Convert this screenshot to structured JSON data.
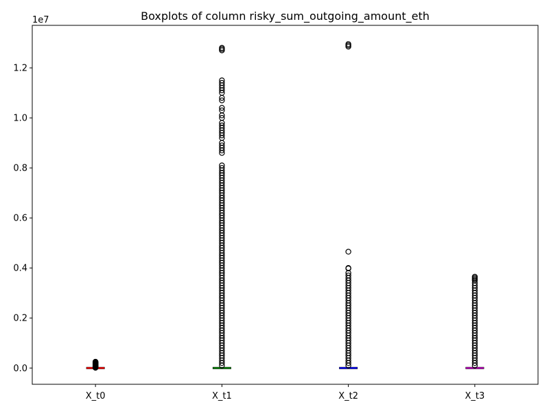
{
  "chart_data": {
    "type": "box",
    "title": "Boxplots of column risky_sum_outgoing_amount_eth",
    "xlabel": "",
    "ylabel": "",
    "y_scale_label": "1e7",
    "ylim": [
      -0.065,
      1.37
    ],
    "y_ticks": [
      0.0,
      0.2,
      0.4,
      0.6,
      0.8,
      1.0,
      1.2
    ],
    "y_tick_labels": [
      "0.0",
      "0.2",
      "0.4",
      "0.6",
      "0.8",
      "1.0",
      "1.2"
    ],
    "grid": false,
    "categories": [
      "X_t0",
      "X_t1",
      "X_t2",
      "X_t3"
    ],
    "series": [
      {
        "category": "X_t0",
        "median_color": "#ff0000",
        "box": {
          "min": 0.0,
          "q1": 0.0,
          "median": 0.0,
          "q3": 0.0,
          "max": 0.0
        },
        "outlier_max": 0.025,
        "outliers": [
          0.025,
          0.024,
          0.023,
          0.022,
          0.021,
          0.02,
          0.019,
          0.018,
          0.017,
          0.016,
          0.015,
          0.014,
          0.013,
          0.012,
          0.011,
          0.01,
          0.009,
          0.008,
          0.007,
          0.006,
          0.005,
          0.004,
          0.003,
          0.002,
          0.001
        ]
      },
      {
        "category": "X_t1",
        "median_color": "#008000",
        "box": {
          "min": 0.0,
          "q1": 0.0,
          "median": 0.0,
          "q3": 0.0,
          "max": 0.0
        },
        "outlier_max": 1.28,
        "outliers": [
          1.28,
          1.275,
          1.27,
          1.15,
          1.14,
          1.13,
          1.12,
          1.11,
          1.1,
          1.08,
          1.07,
          1.04,
          1.03,
          1.01,
          1.0,
          0.98,
          0.97,
          0.96,
          0.95,
          0.94,
          0.93,
          0.92,
          0.9,
          0.89,
          0.88,
          0.87,
          0.86,
          0.81,
          0.8,
          0.79,
          0.78,
          0.77,
          0.76,
          0.75,
          0.74,
          0.73,
          0.72,
          0.71,
          0.7,
          0.69,
          0.68,
          0.67,
          0.66,
          0.65,
          0.64,
          0.63,
          0.62,
          0.61,
          0.6,
          0.59,
          0.58,
          0.57,
          0.56,
          0.55,
          0.54,
          0.53,
          0.52,
          0.51,
          0.5,
          0.49,
          0.48,
          0.47,
          0.46,
          0.45,
          0.44,
          0.43,
          0.42,
          0.41,
          0.4,
          0.39,
          0.38,
          0.37,
          0.36,
          0.35,
          0.34,
          0.33,
          0.32,
          0.31,
          0.3,
          0.29,
          0.28,
          0.27,
          0.26,
          0.25,
          0.24,
          0.23,
          0.22,
          0.21,
          0.2,
          0.19,
          0.18,
          0.17,
          0.16,
          0.15,
          0.14,
          0.13,
          0.12,
          0.11,
          0.1,
          0.09,
          0.08,
          0.07,
          0.06,
          0.05,
          0.04,
          0.03,
          0.02,
          0.01
        ]
      },
      {
        "category": "X_t2",
        "median_color": "#0000ff",
        "box": {
          "min": 0.0,
          "q1": 0.0,
          "median": 0.0,
          "q3": 0.0,
          "max": 0.0
        },
        "outlier_max": 1.295,
        "outliers": [
          1.295,
          1.29,
          1.285,
          0.465,
          0.4,
          0.398,
          0.38,
          0.37,
          0.36,
          0.35,
          0.34,
          0.33,
          0.32,
          0.31,
          0.3,
          0.29,
          0.28,
          0.27,
          0.26,
          0.25,
          0.24,
          0.23,
          0.22,
          0.21,
          0.2,
          0.19,
          0.18,
          0.17,
          0.16,
          0.15,
          0.14,
          0.13,
          0.12,
          0.11,
          0.1,
          0.09,
          0.08,
          0.07,
          0.06,
          0.05,
          0.04,
          0.03,
          0.02,
          0.01
        ]
      },
      {
        "category": "X_t3",
        "median_color": "#c000c0",
        "box": {
          "min": 0.0,
          "q1": 0.0,
          "median": 0.0,
          "q3": 0.0,
          "max": 0.0
        },
        "outlier_max": 0.365,
        "outliers": [
          0.365,
          0.36,
          0.355,
          0.35,
          0.34,
          0.33,
          0.32,
          0.31,
          0.3,
          0.29,
          0.28,
          0.27,
          0.26,
          0.25,
          0.24,
          0.23,
          0.22,
          0.21,
          0.2,
          0.19,
          0.18,
          0.17,
          0.16,
          0.15,
          0.14,
          0.13,
          0.12,
          0.11,
          0.1,
          0.09,
          0.08,
          0.07,
          0.06,
          0.05,
          0.04,
          0.03,
          0.02,
          0.01
        ]
      }
    ]
  }
}
